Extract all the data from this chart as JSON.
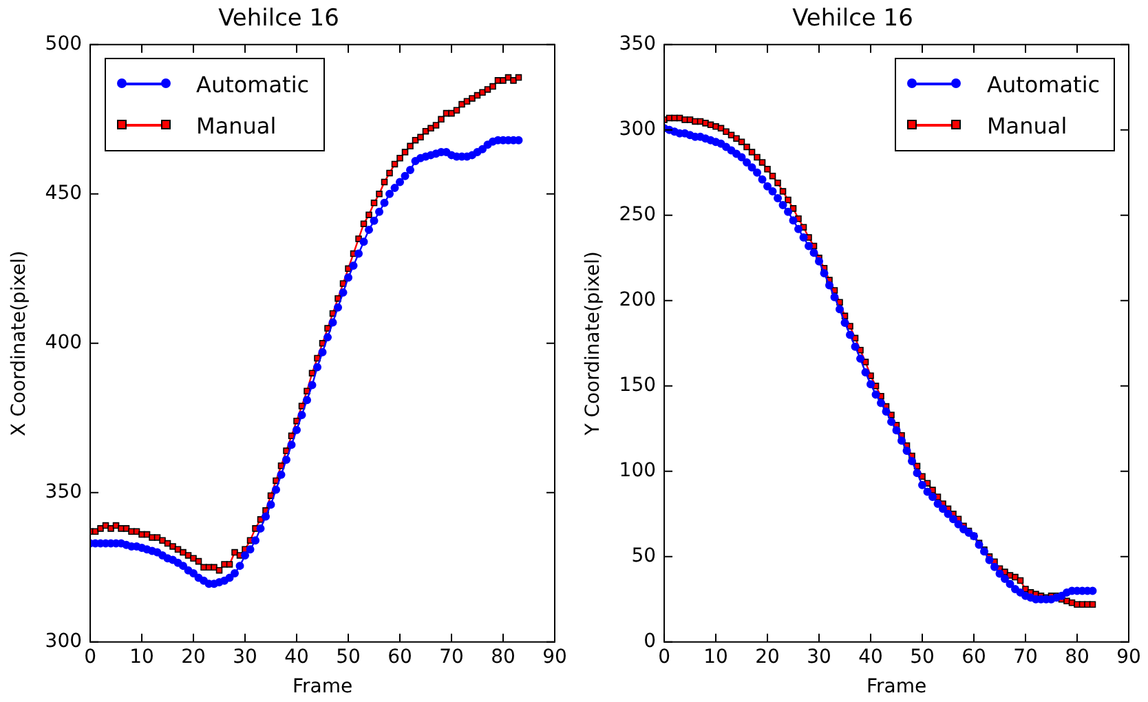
{
  "chart_data": [
    {
      "type": "line",
      "title": "Vehilce 16",
      "xlabel": "Frame",
      "ylabel": "X Coordinate(pixel)",
      "legend": "top left",
      "grid": false,
      "x": [
        0,
        1,
        2,
        3,
        4,
        5,
        6,
        7,
        8,
        9,
        10,
        11,
        12,
        13,
        14,
        15,
        16,
        17,
        18,
        19,
        20,
        21,
        22,
        23,
        24,
        25,
        26,
        27,
        28,
        29,
        30,
        31,
        32,
        33,
        34,
        35,
        36,
        37,
        38,
        39,
        40,
        41,
        42,
        43,
        44,
        45,
        46,
        47,
        48,
        49,
        50,
        51,
        52,
        53,
        54,
        55,
        56,
        57,
        58,
        59,
        60,
        61,
        62,
        63,
        64,
        65,
        66,
        67,
        68,
        69,
        70,
        71,
        72,
        73,
        74,
        75,
        76,
        77,
        78,
        79,
        80,
        81,
        82,
        83
      ],
      "xlim": [
        0,
        90
      ],
      "xticks": [
        0,
        10,
        20,
        30,
        40,
        50,
        60,
        70,
        80,
        90
      ],
      "ylim": [
        300,
        500
      ],
      "yticks": [
        300,
        350,
        400,
        450,
        500
      ],
      "series": [
        {
          "name": "Automatic",
          "color": "#0000ff",
          "marker": "circle",
          "values": [
            333,
            333,
            333,
            333,
            333,
            333,
            333,
            332.5,
            332,
            332,
            331.5,
            331,
            330.5,
            330,
            329,
            328,
            327.5,
            326.5,
            325.5,
            324,
            323,
            321.5,
            320.5,
            319.5,
            319.5,
            320,
            320.5,
            321.5,
            323,
            325.5,
            329,
            331,
            334,
            338,
            342,
            346,
            351,
            356,
            361,
            366,
            371,
            376,
            381,
            386,
            392,
            397,
            402,
            407,
            412,
            417,
            422,
            426,
            430,
            434,
            438,
            441,
            444,
            447,
            450,
            452,
            454,
            456,
            458,
            461,
            462,
            462.5,
            463,
            463.5,
            464,
            464,
            463,
            462.5,
            462.5,
            462.5,
            463,
            464,
            465,
            466.5,
            467.5,
            468,
            468,
            468,
            468,
            468
          ]
        },
        {
          "name": "Manual",
          "color": "#ff0000",
          "marker": "square",
          "values": [
            337,
            337,
            338,
            339,
            338,
            339,
            338,
            338,
            337,
            337,
            336,
            336,
            335,
            335,
            334,
            333,
            332,
            331,
            330,
            329,
            328,
            327,
            325,
            325,
            325,
            324,
            326,
            326,
            330,
            329,
            331,
            334,
            338,
            341,
            344,
            349,
            354,
            359,
            364,
            369,
            374,
            379,
            384,
            390,
            395,
            400,
            405,
            410,
            415,
            420,
            425,
            430,
            435,
            440,
            443,
            447,
            450,
            454,
            457,
            460,
            462,
            464,
            466,
            468,
            469,
            471,
            472,
            473,
            475,
            477,
            477,
            478,
            480,
            481,
            482,
            483,
            484,
            485,
            486,
            488,
            488,
            489,
            488,
            489
          ]
        }
      ]
    },
    {
      "type": "line",
      "title": "Vehilce 16",
      "xlabel": "Frame",
      "ylabel": "Y Coordinate(pixel)",
      "legend": "top right",
      "grid": false,
      "x": [
        0,
        1,
        2,
        3,
        4,
        5,
        6,
        7,
        8,
        9,
        10,
        11,
        12,
        13,
        14,
        15,
        16,
        17,
        18,
        19,
        20,
        21,
        22,
        23,
        24,
        25,
        26,
        27,
        28,
        29,
        30,
        31,
        32,
        33,
        34,
        35,
        36,
        37,
        38,
        39,
        40,
        41,
        42,
        43,
        44,
        45,
        46,
        47,
        48,
        49,
        50,
        51,
        52,
        53,
        54,
        55,
        56,
        57,
        58,
        59,
        60,
        61,
        62,
        63,
        64,
        65,
        66,
        67,
        68,
        69,
        70,
        71,
        72,
        73,
        74,
        75,
        76,
        77,
        78,
        79,
        80,
        81,
        82,
        83
      ],
      "xlim": [
        0,
        90
      ],
      "xticks": [
        0,
        10,
        20,
        30,
        40,
        50,
        60,
        70,
        80,
        90
      ],
      "ylim": [
        0,
        350
      ],
      "yticks": [
        0,
        50,
        100,
        150,
        200,
        250,
        300,
        350
      ],
      "series": [
        {
          "name": "Automatic",
          "color": "#0000ff",
          "marker": "circle",
          "values": [
            301,
            300,
            299,
            298,
            298,
            297,
            296,
            296,
            295,
            294,
            293,
            292,
            290,
            288,
            286,
            284,
            281,
            278,
            275,
            271,
            267,
            264,
            260,
            256,
            252,
            247,
            242,
            237,
            232,
            228,
            223,
            216,
            209,
            202,
            195,
            187,
            180,
            173,
            166,
            158,
            151,
            145,
            140,
            135,
            129,
            124,
            118,
            112,
            106,
            99,
            92,
            88,
            85,
            81,
            78,
            75,
            72,
            69,
            66,
            64,
            62,
            57,
            53,
            48,
            44,
            40,
            37,
            34,
            31,
            29,
            27,
            26,
            25,
            25,
            25,
            25,
            26,
            27,
            29,
            30,
            30,
            30,
            30,
            30
          ]
        },
        {
          "name": "Manual",
          "color": "#ff0000",
          "marker": "square",
          "values": [
            306,
            307,
            307,
            307,
            306,
            306,
            305,
            305,
            304,
            303,
            302,
            301,
            299,
            297,
            295,
            293,
            290,
            287,
            284,
            281,
            277,
            273,
            269,
            264,
            259,
            254,
            248,
            243,
            237,
            232,
            225,
            219,
            212,
            206,
            199,
            191,
            185,
            178,
            171,
            164,
            156,
            150,
            144,
            138,
            133,
            127,
            121,
            115,
            109,
            103,
            97,
            93,
            89,
            85,
            81,
            78,
            75,
            72,
            68,
            65,
            62,
            58,
            54,
            50,
            47,
            43,
            41,
            39,
            38,
            36,
            31,
            29,
            28,
            27,
            26,
            27,
            27,
            25,
            24,
            23,
            22,
            22,
            22,
            22
          ]
        }
      ]
    }
  ]
}
